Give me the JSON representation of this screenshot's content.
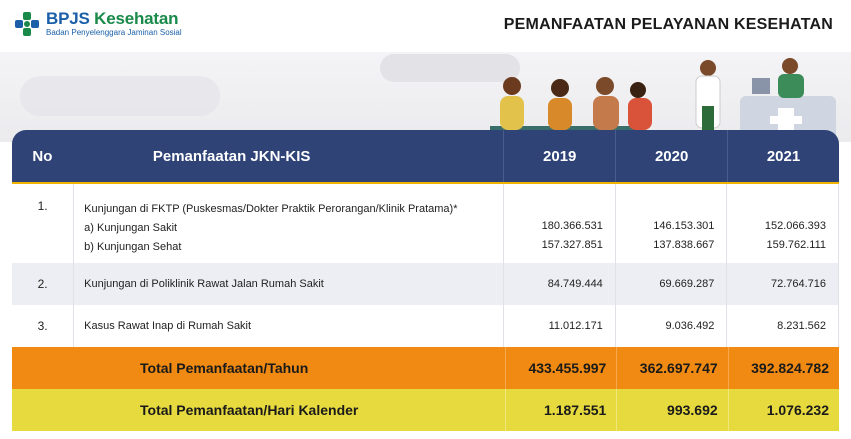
{
  "logo": {
    "brand_first": "BPJS",
    "brand_second": " Kesehatan",
    "subtitle": "Badan Penyelenggara Jaminan Sosial"
  },
  "page": {
    "title": "PEMANFAATAN PELAYANAN KESEHATAN"
  },
  "colors": {
    "header_bg": "#2f4377",
    "accent_line": "#f0b400",
    "total_year_bg": "#f08a12",
    "total_day_bg": "#e6da3e",
    "brand_green": "#1a8a4a",
    "brand_blue": "#1a5fa8"
  },
  "table": {
    "headers": {
      "no": "No",
      "desc": "Pemanfaatan JKN-KIS",
      "y1": "2019",
      "y2": "2020",
      "y3": "2021"
    },
    "rows": [
      {
        "no": "1.",
        "title": "Kunjungan di FKTP (Puskesmas/Dokter Praktik Perorangan/Klinik Pratama)*",
        "sub_a": "a) Kunjungan Sakit",
        "sub_b": "b) Kunjungan Sehat",
        "y1_a": "180.366.531",
        "y1_b": "157.327.851",
        "y2_a": "146.153.301",
        "y2_b": "137.838.667",
        "y3_a": "152.066.393",
        "y3_b": "159.762.111"
      },
      {
        "no": "2.",
        "title": "Kunjungan di Poliklinik Rawat Jalan Rumah Sakit",
        "y1": "84.749.444",
        "y2": "69.669.287",
        "y3": "72.764.716"
      },
      {
        "no": "3.",
        "title": "Kasus Rawat Inap di Rumah Sakit",
        "y1": "11.012.171",
        "y2": "9.036.492",
        "y3": "8.231.562"
      }
    ],
    "total_year": {
      "label": "Total Pemanfaatan/Tahun",
      "y1": "433.455.997",
      "y2": "362.697.747",
      "y3": "392.824.782"
    },
    "total_day": {
      "label": "Total Pemanfaatan/Hari Kalender",
      "y1": "1.187.551",
      "y2": "993.692",
      "y3": "1.076.232"
    }
  }
}
